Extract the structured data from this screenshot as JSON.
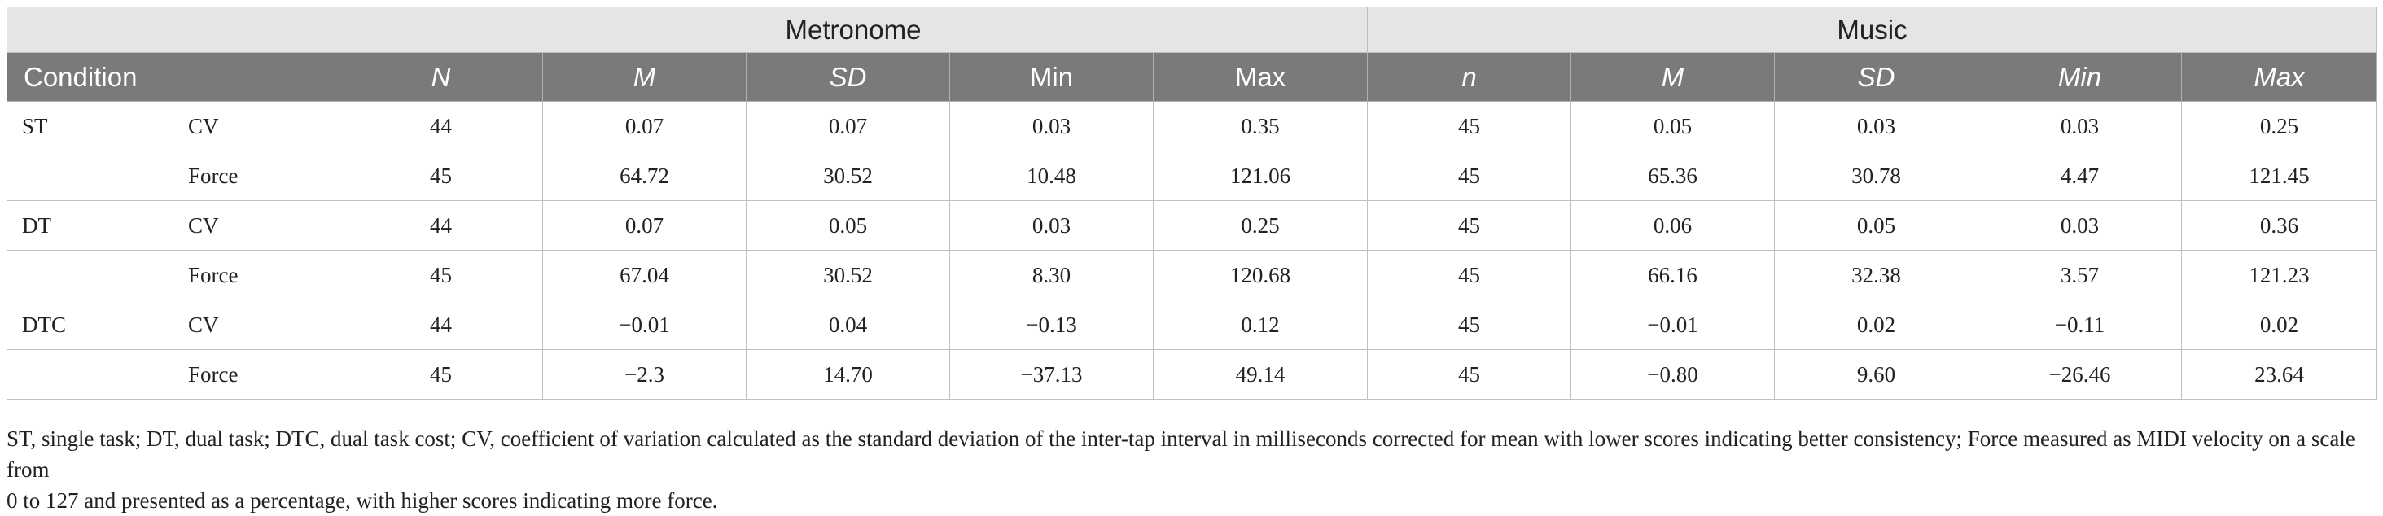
{
  "groups": {
    "metronome": "Metronome",
    "music": "Music"
  },
  "columns": {
    "condition": "Condition",
    "metronome": [
      "N",
      "M",
      "SD",
      "Min",
      "Max"
    ],
    "music": [
      "n",
      "M",
      "SD",
      "Min",
      "Max"
    ]
  },
  "rows": [
    {
      "condition": "ST",
      "measure": "CV",
      "metronome": [
        "44",
        "0.07",
        "0.07",
        "0.03",
        "0.35"
      ],
      "music": [
        "45",
        "0.05",
        "0.03",
        "0.03",
        "0.25"
      ]
    },
    {
      "condition": "",
      "measure": "Force",
      "metronome": [
        "45",
        "64.72",
        "30.52",
        "10.48",
        "121.06"
      ],
      "music": [
        "45",
        "65.36",
        "30.78",
        "4.47",
        "121.45"
      ]
    },
    {
      "condition": "DT",
      "measure": "CV",
      "metronome": [
        "44",
        "0.07",
        "0.05",
        "0.03",
        "0.25"
      ],
      "music": [
        "45",
        "0.06",
        "0.05",
        "0.03",
        "0.36"
      ]
    },
    {
      "condition": "",
      "measure": "Force",
      "metronome": [
        "45",
        "67.04",
        "30.52",
        "8.30",
        "120.68"
      ],
      "music": [
        "45",
        "66.16",
        "32.38",
        "3.57",
        "121.23"
      ]
    },
    {
      "condition": "DTC",
      "measure": "CV",
      "metronome": [
        "44",
        "−0.01",
        "0.04",
        "−0.13",
        "0.12"
      ],
      "music": [
        "45",
        "−0.01",
        "0.02",
        "−0.11",
        "0.02"
      ]
    },
    {
      "condition": "",
      "measure": "Force",
      "metronome": [
        "45",
        "−2.3",
        "14.70",
        "−37.13",
        "49.14"
      ],
      "music": [
        "45",
        "−0.80",
        "9.60",
        "−26.46",
        "23.64"
      ]
    }
  ],
  "note_line1": "ST, single task; DT, dual task; DTC, dual task cost; CV, coefficient of variation calculated as the standard deviation of the inter-tap interval in milliseconds corrected for mean with lower scores indicating better consistency; Force measured as MIDI velocity on a scale from",
  "note_line2": "0 to 127 and presented as a percentage, with higher scores indicating more force."
}
